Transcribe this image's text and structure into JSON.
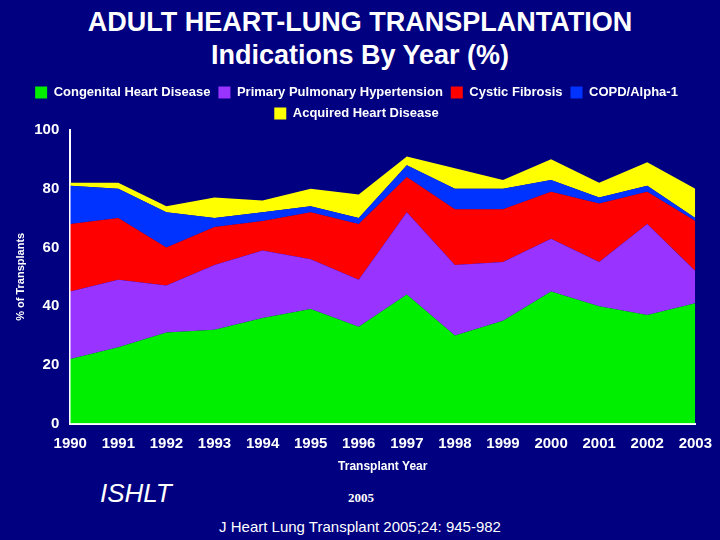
{
  "chart_data": {
    "type": "area",
    "title": "ADULT HEART-LUNG TRANSPLANTATION",
    "subtitle": "Indications By Year (%)",
    "x_label": "Transplant Year",
    "y_label": "% of Transplants",
    "annotations": [
      "ISHLT",
      "2005",
      "J Heart Lung Transplant 2005;24: 945-982"
    ],
    "categories": [
      "1990",
      "1991",
      "1992",
      "1993",
      "1994",
      "1995",
      "1996",
      "1997",
      "1998",
      "1999",
      "2000",
      "2001",
      "2002",
      "2003"
    ],
    "series": [
      {
        "name": "Congenital Heart Disease",
        "color": "#00ee00",
        "values": [
          22,
          26,
          31,
          32,
          36,
          39,
          33,
          44,
          30,
          35,
          45,
          40,
          37,
          41
        ]
      },
      {
        "name": "Primary Pulmonary Hypertension",
        "color": "#9933ff",
        "values": [
          23,
          23,
          16,
          22,
          23,
          17,
          16,
          28,
          24,
          20,
          18,
          15,
          31,
          11
        ]
      },
      {
        "name": "Cystic Fibrosis",
        "color": "#ff0000",
        "values": [
          23,
          21,
          13,
          13,
          10,
          16,
          19,
          12,
          19,
          18,
          16,
          20,
          11,
          17
        ]
      },
      {
        "name": "COPD/Alpha-1",
        "color": "#0033ff",
        "values": [
          13,
          10,
          12,
          3,
          3,
          2,
          2,
          4,
          7,
          7,
          4,
          2,
          2,
          1
        ]
      },
      {
        "name": "Acquired Heart Disease",
        "color": "#ffff00",
        "values": [
          1,
          2,
          2,
          7,
          4,
          6,
          8,
          3,
          7,
          3,
          7,
          5,
          8,
          10
        ]
      }
    ],
    "ylim": [
      0,
      100
    ],
    "yticks": [
      0,
      20,
      40,
      60,
      80,
      100
    ],
    "stacked": true,
    "grid": false,
    "legend": "top"
  }
}
